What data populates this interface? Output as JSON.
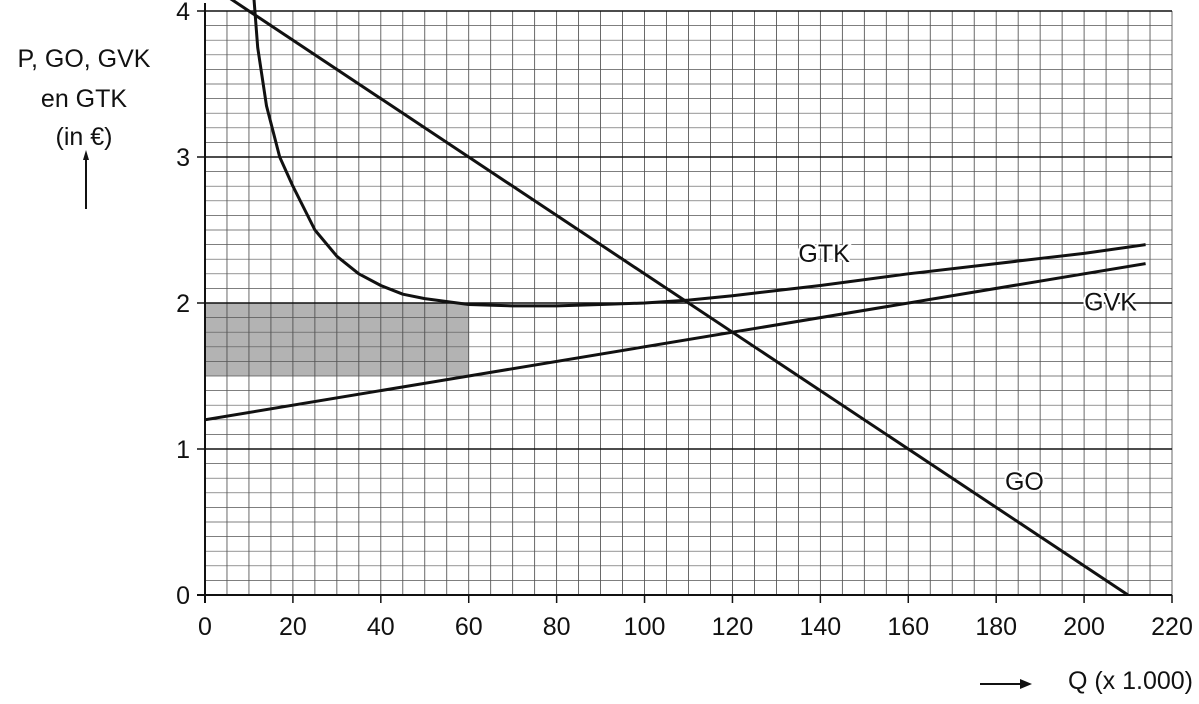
{
  "chart_data": {
    "type": "line",
    "ylabel_lines": [
      "P, GO, GVK",
      "en GTK",
      "(in €)"
    ],
    "xlabel": "Q (x 1.000)",
    "xlim": [
      0,
      220
    ],
    "ylim": [
      0,
      4
    ],
    "x_ticks": [
      0,
      20,
      40,
      60,
      80,
      100,
      120,
      140,
      160,
      180,
      200,
      220
    ],
    "y_ticks": [
      0,
      1,
      2,
      3,
      4
    ],
    "grid": true,
    "shaded_area": {
      "x": [
        0,
        60
      ],
      "y": [
        1.5,
        2.0
      ],
      "color": "#b3b3b3"
    },
    "series": [
      {
        "name": "GO",
        "label_at": [
          182,
          0.72
        ],
        "points": [
          [
            0,
            4.2
          ],
          [
            210,
            0
          ]
        ]
      },
      {
        "name": "GVK",
        "label_at": [
          200,
          1.95
        ],
        "points": [
          [
            0,
            1.2
          ],
          [
            214,
            2.27
          ]
        ]
      },
      {
        "name": "GTK",
        "label_at": [
          135,
          2.28
        ],
        "points": [
          [
            10.5,
            4.33
          ],
          [
            12,
            3.75
          ],
          [
            14,
            3.35
          ],
          [
            17,
            3.0
          ],
          [
            20,
            2.8
          ],
          [
            25,
            2.5
          ],
          [
            30,
            2.32
          ],
          [
            35,
            2.2
          ],
          [
            40,
            2.12
          ],
          [
            45,
            2.06
          ],
          [
            50,
            2.03
          ],
          [
            60,
            1.99
          ],
          [
            70,
            1.98
          ],
          [
            80,
            1.98
          ],
          [
            90,
            1.99
          ],
          [
            100,
            2.0
          ],
          [
            110,
            2.02
          ],
          [
            120,
            2.05
          ],
          [
            140,
            2.12
          ],
          [
            160,
            2.2
          ],
          [
            180,
            2.27
          ],
          [
            200,
            2.34
          ],
          [
            214,
            2.4
          ]
        ]
      }
    ]
  }
}
